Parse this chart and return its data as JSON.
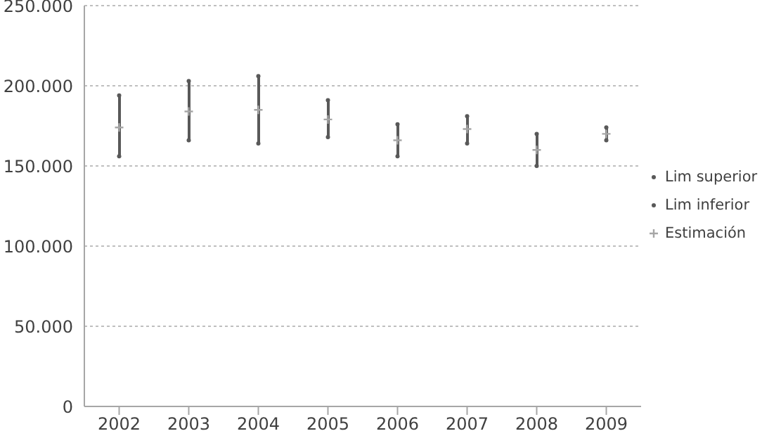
{
  "chart_data": {
    "type": "scatter",
    "categories": [
      "2002",
      "2003",
      "2004",
      "2005",
      "2006",
      "2007",
      "2008",
      "2009"
    ],
    "series": [
      {
        "name": "Lim superior",
        "color": "#595959",
        "marker": "circle",
        "values": [
          194000,
          203000,
          206000,
          191000,
          176000,
          181000,
          170000,
          174000
        ]
      },
      {
        "name": "Lim inferior",
        "color": "#595959",
        "marker": "circle",
        "values": [
          156000,
          166000,
          164000,
          168000,
          156000,
          164000,
          150000,
          166000
        ]
      },
      {
        "name": "Estimación",
        "color": "#a6a6a6",
        "marker": "cross",
        "values": [
          174000,
          184000,
          185000,
          179000,
          166000,
          173000,
          160000,
          170000
        ]
      }
    ],
    "ylim": [
      0,
      250000
    ],
    "yticks": [
      {
        "value": 0,
        "label": "0"
      },
      {
        "value": 50000,
        "label": "50.000"
      },
      {
        "value": 100000,
        "label": "100.000"
      },
      {
        "value": 150000,
        "label": "150.000"
      },
      {
        "value": 200000,
        "label": "200.000"
      },
      {
        "value": 250000,
        "label": "250.000"
      }
    ],
    "grid": "y",
    "legend": "right"
  }
}
